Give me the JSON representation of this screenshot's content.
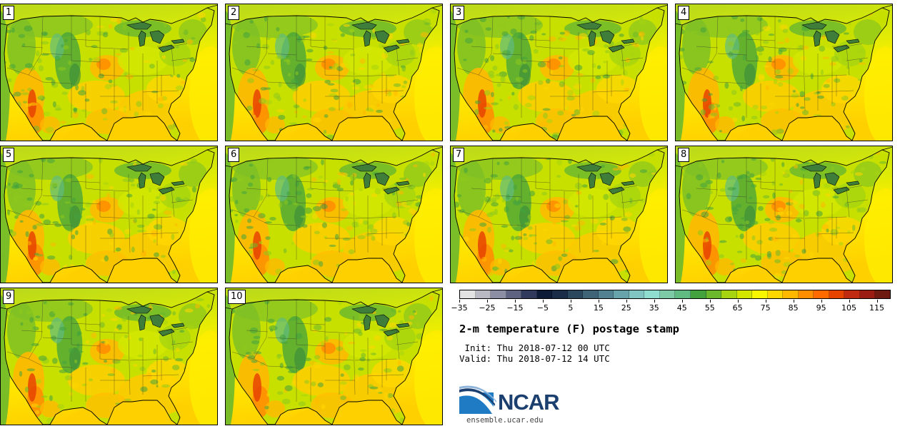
{
  "figure": {
    "title": "2-m temperature (F) postage stamp",
    "init": " Init: Thu 2018-07-12 00 UTC",
    "valid": "Valid: Thu 2018-07-12 14 UTC",
    "logo_text": "NCAR",
    "logo_url": "ensemble.ucar.edu"
  },
  "panels": [
    {
      "label": "1"
    },
    {
      "label": "2"
    },
    {
      "label": "3"
    },
    {
      "label": "4"
    },
    {
      "label": "5"
    },
    {
      "label": "6"
    },
    {
      "label": "7"
    },
    {
      "label": "8"
    },
    {
      "label": "9"
    },
    {
      "label": "10"
    }
  ],
  "colorbar": {
    "units": "F",
    "min": -35,
    "max": 120,
    "step": 5,
    "tick_labels": [
      "−35",
      "−25",
      "−15",
      "−5",
      "5",
      "15",
      "25",
      "35",
      "45",
      "55",
      "65",
      "75",
      "85",
      "95",
      "105",
      "115"
    ],
    "tick_values": [
      -35,
      -25,
      -15,
      -5,
      5,
      15,
      25,
      35,
      45,
      55,
      65,
      75,
      85,
      95,
      105,
      115
    ],
    "colors": [
      "#e3e3e3",
      "#b9b9c3",
      "#8c8fa3",
      "#5d6381",
      "#2f3a5c",
      "#0d1a38",
      "#1a2c48",
      "#2b475e",
      "#3f6377",
      "#528291",
      "#68a3ab",
      "#80c5c2",
      "#8fdcd0",
      "#7ccba6",
      "#5fbb82",
      "#43a23e",
      "#6cb82c",
      "#a6d410",
      "#d2e600",
      "#f7f700",
      "#ffd700",
      "#ffb800",
      "#ff8f00",
      "#ff6a00",
      "#e64300",
      "#c02a10",
      "#9b1c12",
      "#6e1a10"
    ]
  },
  "chart_data": {
    "type": "heatmap",
    "title": "2-m temperature (F) postage stamp",
    "members": [
      "1",
      "2",
      "3",
      "4",
      "5",
      "6",
      "7",
      "8",
      "9",
      "10"
    ],
    "region": "CONUS",
    "colorbar_range": [
      -35,
      120
    ],
    "colorbar_units": "F"
  }
}
